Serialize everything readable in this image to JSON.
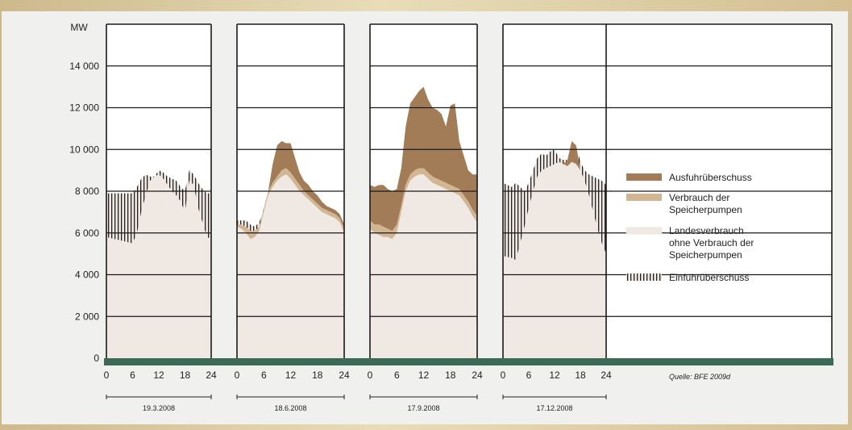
{
  "chart_data": {
    "type": "area",
    "y_unit": "MW",
    "ylim": [
      0,
      16000
    ],
    "yticks": [
      0,
      2000,
      4000,
      6000,
      8000,
      10000,
      12000,
      14000
    ],
    "ytick_labels": [
      "0",
      "2 000",
      "4 000",
      "6 000",
      "8 000",
      "10 000",
      "12 000",
      "14 000"
    ],
    "xlim": [
      0,
      24
    ],
    "xticks": [
      0,
      6,
      12,
      18,
      24
    ],
    "grid": true,
    "source": "Quelle: BFE 2009d",
    "legend_position": "right",
    "series_names": [
      "Ausfuhrüberschuss",
      "Verbrauch der Speicherpumpen",
      "Landesverbrauch ohne Verbrauch der Speicherpumpen",
      "Einfuhrüberschuss"
    ],
    "colors": {
      "export": "#a17c57",
      "pumps": "#d2b694",
      "consumption": "#efe8e3",
      "import_hatch": "#222222",
      "axis_band": "#3d6a56",
      "grid": "#1a1a1a"
    },
    "days": [
      {
        "date": "19.3.2008",
        "x": [
          0,
          2,
          4,
          6,
          7,
          8,
          9,
          10,
          11,
          12,
          13,
          14,
          15,
          16,
          17,
          18,
          19,
          20,
          21,
          22,
          23,
          24
        ],
        "consumption": [
          5800,
          5700,
          5600,
          5500,
          6000,
          7000,
          7800,
          8500,
          8700,
          8800,
          8600,
          8300,
          8000,
          7800,
          7500,
          7000,
          8500,
          8300,
          7200,
          6500,
          5800,
          5700
        ],
        "pumps": [
          0,
          0,
          0,
          0,
          0,
          0,
          0,
          0,
          0,
          0,
          0,
          0,
          0,
          0,
          0,
          0,
          0,
          0,
          0,
          0,
          0,
          0
        ],
        "export": [
          0,
          0,
          0,
          0,
          0,
          0,
          0,
          0,
          0,
          0,
          0,
          0,
          0,
          0,
          0,
          0,
          0,
          0,
          0,
          0,
          0,
          0
        ],
        "production": [
          7900,
          7900,
          7900,
          7900,
          8200,
          8600,
          8800,
          8700,
          8600,
          9000,
          8900,
          8700,
          8600,
          8500,
          8200,
          8000,
          9000,
          8800,
          8400,
          8100,
          7900,
          7900
        ]
      },
      {
        "date": "18.6.2008",
        "x": [
          0,
          1,
          2,
          3,
          4,
          5,
          6,
          7,
          8,
          9,
          10,
          11,
          12,
          13,
          14,
          15,
          16,
          17,
          18,
          19,
          20,
          21,
          22,
          23,
          24
        ],
        "consumption": [
          6300,
          6200,
          6000,
          5700,
          5800,
          6100,
          7000,
          7800,
          8200,
          8500,
          8700,
          8800,
          8600,
          8300,
          8000,
          7800,
          7600,
          7400,
          7200,
          7000,
          6900,
          6800,
          6700,
          6500,
          6000
        ],
        "pumps": [
          100,
          200,
          300,
          400,
          300,
          200,
          200,
          200,
          200,
          200,
          300,
          300,
          300,
          300,
          300,
          200,
          200,
          200,
          200,
          200,
          200,
          200,
          200,
          200,
          200
        ],
        "export": [
          0,
          0,
          0,
          0,
          0,
          0,
          0,
          0,
          900,
          1500,
          1400,
          1200,
          1400,
          1000,
          600,
          500,
          500,
          400,
          400,
          300,
          200,
          200,
          200,
          200,
          200
        ],
        "production": [
          6600,
          6600,
          6600,
          6400,
          6300,
          6500,
          7200,
          8000,
          9300,
          10200,
          10400,
          10300,
          10300,
          9600,
          8900,
          8500,
          8300,
          8000,
          7800,
          7500,
          7300,
          7200,
          7100,
          6900,
          6400
        ]
      },
      {
        "date": "17.9.2008",
        "x": [
          0,
          1,
          2,
          3,
          4,
          5,
          6,
          7,
          8,
          9,
          10,
          11,
          12,
          13,
          14,
          15,
          16,
          17,
          18,
          19,
          20,
          21,
          22,
          23,
          24
        ],
        "consumption": [
          6200,
          6000,
          5900,
          5800,
          5800,
          5700,
          6000,
          7000,
          8000,
          8500,
          8700,
          8800,
          8800,
          8600,
          8400,
          8300,
          8200,
          8100,
          8000,
          7900,
          7800,
          7500,
          7200,
          6800,
          6500
        ],
        "pumps": [
          400,
          400,
          500,
          500,
          400,
          400,
          400,
          300,
          300,
          300,
          300,
          300,
          300,
          300,
          300,
          300,
          300,
          300,
          300,
          300,
          300,
          300,
          300,
          300,
          300
        ],
        "export": [
          1700,
          1800,
          1900,
          2000,
          1900,
          1900,
          1700,
          1800,
          2800,
          3400,
          3500,
          3700,
          3900,
          3500,
          3300,
          3300,
          3200,
          2700,
          3800,
          4000,
          2300,
          1900,
          1500,
          1700,
          2000
        ],
        "production": [
          8300,
          8200,
          8300,
          8300,
          8100,
          8000,
          8100,
          9100,
          11100,
          12200,
          12500,
          12800,
          13000,
          12400,
          12000,
          11900,
          11700,
          11100,
          12100,
          12200,
          10400,
          9700,
          9000,
          8800,
          8800
        ]
      },
      {
        "date": "17.12.2008",
        "x": [
          0,
          2,
          3,
          4,
          5,
          6,
          7,
          8,
          9,
          10,
          11,
          12,
          13,
          14,
          15,
          16,
          17,
          18,
          19,
          20,
          21,
          22,
          23,
          24
        ],
        "consumption": [
          4900,
          4800,
          4700,
          5500,
          6300,
          7200,
          8000,
          8700,
          9000,
          9100,
          9200,
          9300,
          9400,
          9300,
          9200,
          9400,
          9300,
          9000,
          8500,
          7800,
          7000,
          6200,
          5500,
          5000
        ],
        "pumps": [
          0,
          0,
          0,
          0,
          0,
          0,
          0,
          0,
          0,
          0,
          0,
          0,
          0,
          0,
          0,
          0,
          0,
          0,
          0,
          0,
          0,
          0,
          0,
          0
        ],
        "export": [
          0,
          0,
          0,
          0,
          0,
          0,
          0,
          0,
          0,
          0,
          0,
          0,
          0,
          0,
          300,
          1000,
          900,
          0,
          0,
          0,
          0,
          0,
          0,
          0
        ],
        "production": [
          8400,
          8200,
          8400,
          8200,
          8000,
          8400,
          9000,
          9600,
          9800,
          9700,
          9900,
          10000,
          9600,
          9500,
          9500,
          10400,
          10200,
          9400,
          9000,
          8800,
          8700,
          8600,
          8500,
          8300
        ]
      }
    ]
  }
}
